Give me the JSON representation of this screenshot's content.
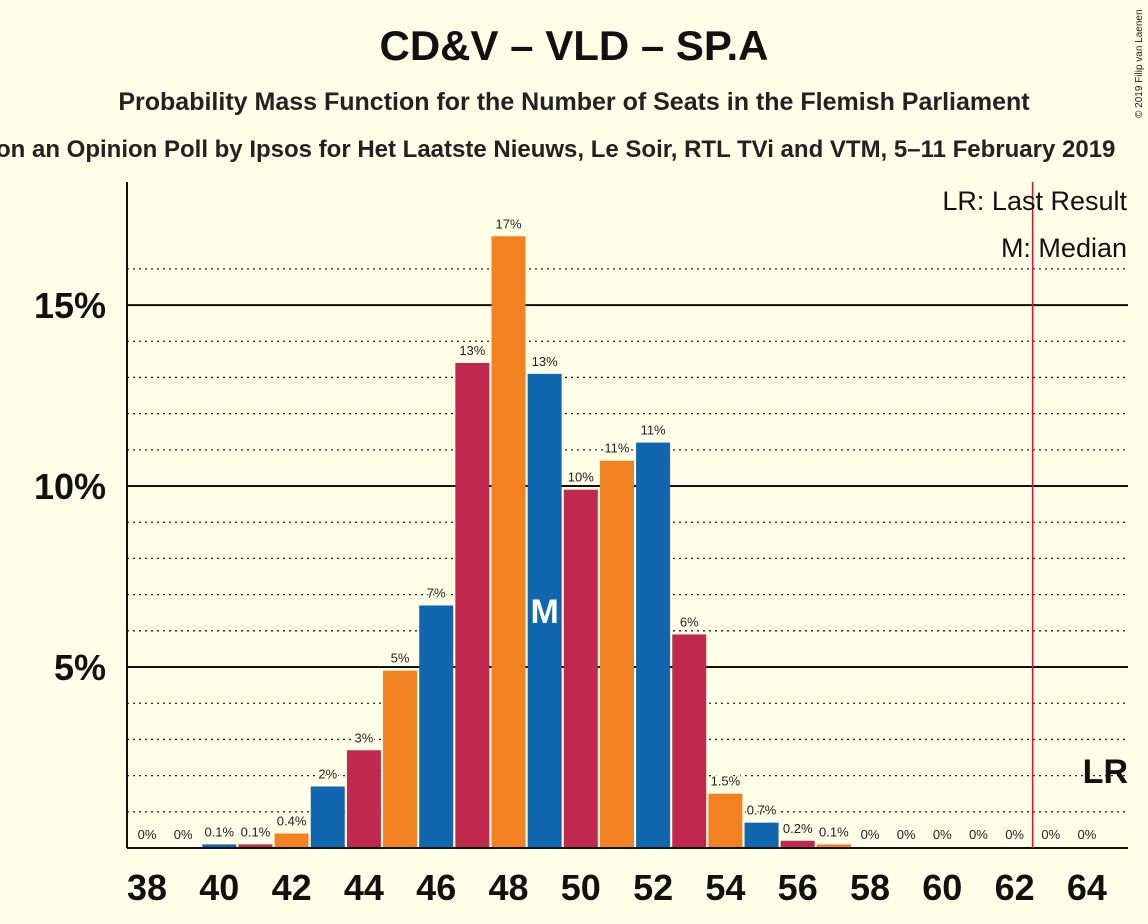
{
  "title": "CD&V – VLD – SP.A",
  "subtitle": "Probability Mass Function for the Number of Seats in the Flemish Parliament",
  "source": "on an Opinion Poll by Ipsos for Het Laatste Nieuws, Le Soir, RTL TVi and VTM, 5–11 February 2019",
  "copyright": "© 2019 Filip van Laenen",
  "legend": {
    "last_result": "LR: Last Result",
    "median": "M: Median"
  },
  "median_marker": "M",
  "lr_marker": "LR",
  "colors": {
    "background": "#FFFEE6",
    "cdv": "#C0284E",
    "vld": "#F28121",
    "spa": "#1166B0",
    "last_result_line": "#E8112D"
  },
  "chart_data": {
    "type": "bar",
    "x": [
      38,
      39,
      40,
      41,
      42,
      43,
      44,
      45,
      46,
      47,
      48,
      49,
      50,
      51,
      52,
      53,
      54,
      55,
      56,
      57,
      58,
      59,
      60,
      61,
      62,
      63,
      64
    ],
    "values": [
      0,
      0,
      0.1,
      0.1,
      0.4,
      1.7,
      2.7,
      4.9,
      6.7,
      13.4,
      16.9,
      13.1,
      9.9,
      10.7,
      11.2,
      5.9,
      1.5,
      0.7,
      0.2,
      0.1,
      0,
      0,
      0,
      0,
      0,
      0,
      0
    ],
    "labels": [
      "0%",
      "0%",
      "0.1%",
      "0.1%",
      "0.4%",
      "2%",
      "3%",
      "5%",
      "7%",
      "13%",
      "17%",
      "13%",
      "10%",
      "11%",
      "11%",
      "6%",
      "1.5%",
      "0.7%",
      "0.2%",
      "0.1%",
      "0%",
      "0%",
      "0%",
      "0%",
      "0%",
      "0%",
      "0%"
    ],
    "colors": [
      "#C0284E",
      "#F28121",
      "#1166B0",
      "#C0284E",
      "#F28121",
      "#1166B0",
      "#C0284E",
      "#F28121",
      "#1166B0",
      "#C0284E",
      "#F28121",
      "#1166B0",
      "#C0284E",
      "#F28121",
      "#1166B0",
      "#C0284E",
      "#F28121",
      "#1166B0",
      "#C0284E",
      "#F28121",
      "#1166B0",
      "#C0284E",
      "#F28121",
      "#1166B0",
      "#C0284E",
      "#F28121",
      "#1166B0"
    ],
    "x_tick_labels": [
      "38",
      "40",
      "42",
      "44",
      "46",
      "48",
      "50",
      "52",
      "54",
      "56",
      "58",
      "60",
      "62",
      "64"
    ],
    "y_tick_labels": [
      "5%",
      "10%",
      "15%"
    ],
    "y_ticks": [
      5,
      10,
      15
    ],
    "y_minor_ticks": [
      1,
      2,
      3,
      4,
      6,
      7,
      8,
      9,
      11,
      12,
      13,
      14,
      16
    ],
    "ylim": [
      0,
      18.4
    ],
    "median": 49,
    "last_result": 62.5
  }
}
